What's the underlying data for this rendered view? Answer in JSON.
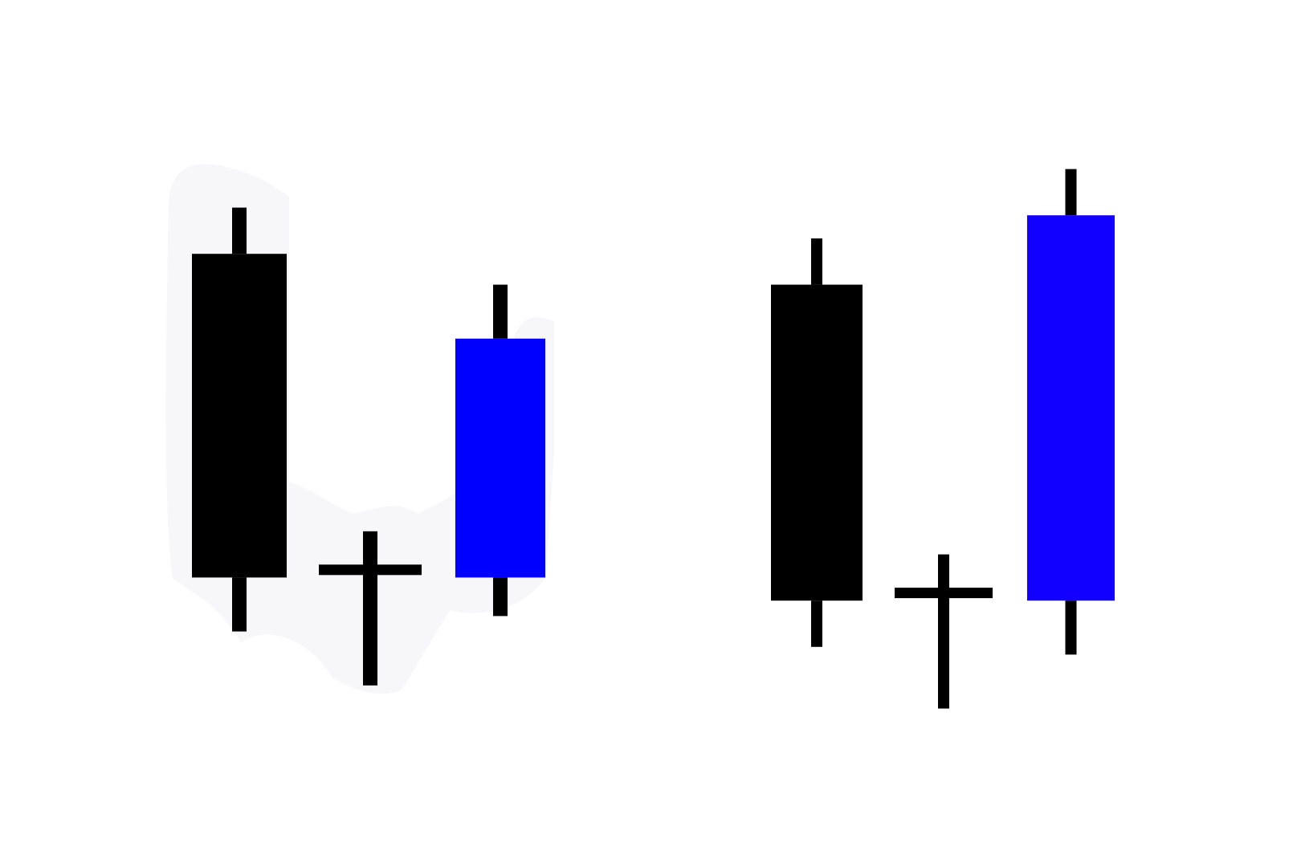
{
  "chart_data": [
    {
      "type": "candlestick",
      "pattern": "evening-doji-star-like",
      "group": "left",
      "colors": {
        "bearish": "#000000",
        "bullish": "#0000ff",
        "doji": "#000000",
        "wick": "#000000",
        "background_blob": "#f7f7fa"
      },
      "candles": [
        {
          "id": "c1",
          "direction": "bearish",
          "open": 78,
          "close": 36,
          "high": 84,
          "low": 29
        },
        {
          "id": "c2",
          "direction": "doji",
          "open": 37,
          "close": 37,
          "high": 42,
          "low": 22
        },
        {
          "id": "c3",
          "direction": "bullish",
          "open": 36,
          "close": 67,
          "high": 74,
          "low": 31
        }
      ]
    },
    {
      "type": "candlestick",
      "pattern": "morning-doji-star-like",
      "group": "right",
      "colors": {
        "bearish": "#000000",
        "bullish": "#1100ff",
        "doji": "#000000",
        "wick": "#000000"
      },
      "candles": [
        {
          "id": "c4",
          "direction": "bearish",
          "open": 74,
          "close": 33,
          "high": 80,
          "low": 27
        },
        {
          "id": "c5",
          "direction": "doji",
          "open": 34,
          "close": 34,
          "high": 39,
          "low": 19
        },
        {
          "id": "c6",
          "direction": "bullish",
          "open": 33,
          "close": 83,
          "high": 89,
          "low": 26
        }
      ]
    }
  ]
}
